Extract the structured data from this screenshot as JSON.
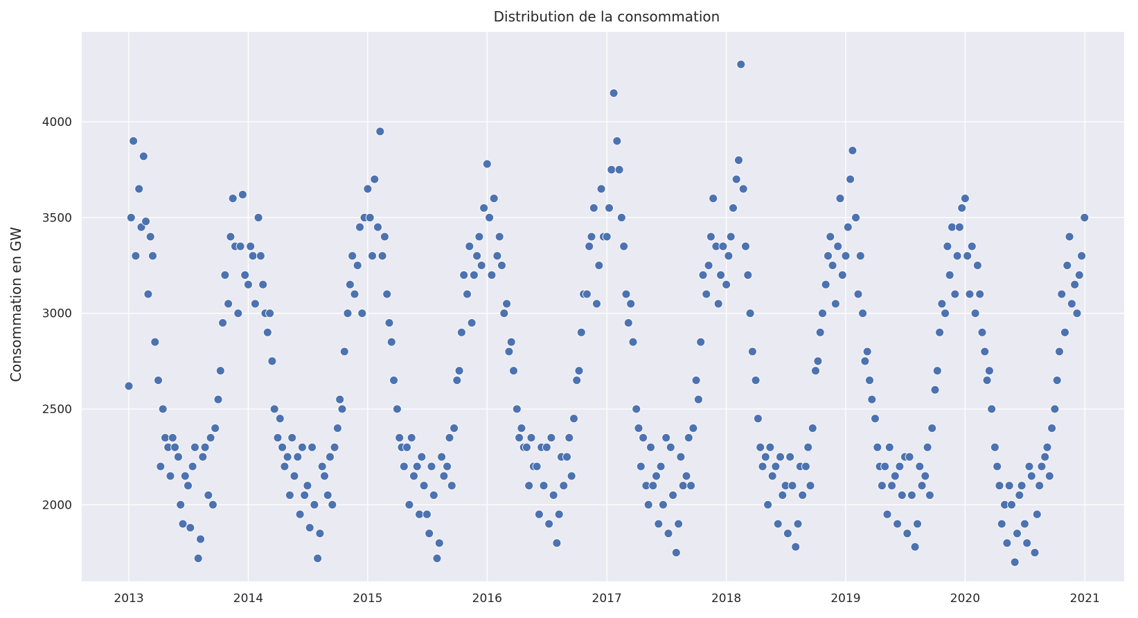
{
  "chart_data": {
    "type": "scatter",
    "title": "Distribution de la consommation",
    "xlabel": "",
    "ylabel": "Consommation en GW",
    "xlim": [
      "2012-08-10",
      "2021-05-01"
    ],
    "ylim": [
      1600,
      4470
    ],
    "x_ticks": [
      "2013",
      "2014",
      "2015",
      "2016",
      "2017",
      "2018",
      "2019",
      "2020",
      "2021"
    ],
    "y_ticks": [
      "2000",
      "2500",
      "3000",
      "3500",
      "4000"
    ],
    "grid": true,
    "legend": "none",
    "colors": {
      "background": "#eaeaf2",
      "grid": "#ffffff",
      "marker": "#4c72b0",
      "marker_edge": "#ffffff"
    },
    "series": [
      {
        "x": [
          "2013-01-01",
          "2013-01-08",
          "2013-01-15",
          "2013-01-22",
          "2013-02-01",
          "2013-02-08",
          "2013-02-15",
          "2013-02-22",
          "2013-03-01",
          "2013-03-08",
          "2013-03-15",
          "2013-03-22",
          "2013-04-01",
          "2013-04-08",
          "2013-04-15",
          "2013-04-22",
          "2013-05-01",
          "2013-05-08",
          "2013-05-15",
          "2013-05-22",
          "2013-06-01",
          "2013-06-08",
          "2013-06-15",
          "2013-06-22",
          "2013-07-01",
          "2013-07-08",
          "2013-07-15",
          "2013-07-22",
          "2013-08-01",
          "2013-08-08",
          "2013-08-15",
          "2013-08-22",
          "2013-09-01",
          "2013-09-08",
          "2013-09-15",
          "2013-09-22",
          "2013-10-01",
          "2013-10-08",
          "2013-10-15",
          "2013-10-22",
          "2013-11-01",
          "2013-11-08",
          "2013-11-15",
          "2013-11-22",
          "2013-12-01",
          "2013-12-08",
          "2013-12-15",
          "2013-12-22",
          "2014-01-01",
          "2014-01-08",
          "2014-01-15",
          "2014-01-22",
          "2014-02-01",
          "2014-02-08",
          "2014-02-15",
          "2014-02-22",
          "2014-03-01",
          "2014-03-08",
          "2014-03-15",
          "2014-03-22",
          "2014-04-01",
          "2014-04-08",
          "2014-04-15",
          "2014-04-22",
          "2014-05-01",
          "2014-05-08",
          "2014-05-15",
          "2014-05-22",
          "2014-06-01",
          "2014-06-08",
          "2014-06-15",
          "2014-06-22",
          "2014-07-01",
          "2014-07-08",
          "2014-07-15",
          "2014-07-22",
          "2014-08-01",
          "2014-08-08",
          "2014-08-15",
          "2014-08-22",
          "2014-09-01",
          "2014-09-08",
          "2014-09-15",
          "2014-09-22",
          "2014-10-01",
          "2014-10-08",
          "2014-10-15",
          "2014-10-22",
          "2014-11-01",
          "2014-11-08",
          "2014-11-15",
          "2014-11-22",
          "2014-12-01",
          "2014-12-08",
          "2014-12-15",
          "2014-12-22",
          "2015-01-01",
          "2015-01-08",
          "2015-01-15",
          "2015-01-22",
          "2015-02-01",
          "2015-02-08",
          "2015-02-15",
          "2015-02-22",
          "2015-03-01",
          "2015-03-08",
          "2015-03-15",
          "2015-03-22",
          "2015-04-01",
          "2015-04-08",
          "2015-04-15",
          "2015-04-22",
          "2015-05-01",
          "2015-05-08",
          "2015-05-15",
          "2015-05-22",
          "2015-06-01",
          "2015-06-08",
          "2015-06-15",
          "2015-06-22",
          "2015-07-01",
          "2015-07-08",
          "2015-07-15",
          "2015-07-22",
          "2015-08-01",
          "2015-08-08",
          "2015-08-15",
          "2015-08-22",
          "2015-09-01",
          "2015-09-08",
          "2015-09-15",
          "2015-09-22",
          "2015-10-01",
          "2015-10-08",
          "2015-10-15",
          "2015-10-22",
          "2015-11-01",
          "2015-11-08",
          "2015-11-15",
          "2015-11-22",
          "2015-12-01",
          "2015-12-08",
          "2015-12-15",
          "2015-12-22",
          "2016-01-01",
          "2016-01-08",
          "2016-01-15",
          "2016-01-22",
          "2016-02-01",
          "2016-02-08",
          "2016-02-15",
          "2016-02-22",
          "2016-03-01",
          "2016-03-08",
          "2016-03-15",
          "2016-03-22",
          "2016-04-01",
          "2016-04-08",
          "2016-04-15",
          "2016-04-22",
          "2016-05-01",
          "2016-05-08",
          "2016-05-15",
          "2016-05-22",
          "2016-06-01",
          "2016-06-08",
          "2016-06-15",
          "2016-06-22",
          "2016-07-01",
          "2016-07-08",
          "2016-07-15",
          "2016-07-22",
          "2016-08-01",
          "2016-08-08",
          "2016-08-15",
          "2016-08-22",
          "2016-09-01",
          "2016-09-08",
          "2016-09-15",
          "2016-09-22",
          "2016-10-01",
          "2016-10-08",
          "2016-10-15",
          "2016-10-22",
          "2016-11-01",
          "2016-11-08",
          "2016-11-15",
          "2016-11-22",
          "2016-12-01",
          "2016-12-08",
          "2016-12-15",
          "2016-12-22",
          "2017-01-01",
          "2017-01-08",
          "2017-01-15",
          "2017-01-22",
          "2017-02-01",
          "2017-02-08",
          "2017-02-15",
          "2017-02-22",
          "2017-03-01",
          "2017-03-08",
          "2017-03-15",
          "2017-03-22",
          "2017-04-01",
          "2017-04-08",
          "2017-04-15",
          "2017-04-22",
          "2017-05-01",
          "2017-05-08",
          "2017-05-15",
          "2017-05-22",
          "2017-06-01",
          "2017-06-08",
          "2017-06-15",
          "2017-06-22",
          "2017-07-01",
          "2017-07-08",
          "2017-07-15",
          "2017-07-22",
          "2017-08-01",
          "2017-08-08",
          "2017-08-15",
          "2017-08-22",
          "2017-09-01",
          "2017-09-08",
          "2017-09-15",
          "2017-09-22",
          "2017-10-01",
          "2017-10-08",
          "2017-10-15",
          "2017-10-22",
          "2017-11-01",
          "2017-11-08",
          "2017-11-15",
          "2017-11-22",
          "2017-12-01",
          "2017-12-08",
          "2017-12-15",
          "2017-12-22",
          "2018-01-01",
          "2018-01-08",
          "2018-01-15",
          "2018-01-22",
          "2018-02-01",
          "2018-02-08",
          "2018-02-15",
          "2018-02-22",
          "2018-03-01",
          "2018-03-08",
          "2018-03-15",
          "2018-03-22",
          "2018-04-01",
          "2018-04-08",
          "2018-04-15",
          "2018-04-22",
          "2018-05-01",
          "2018-05-08",
          "2018-05-15",
          "2018-05-22",
          "2018-06-01",
          "2018-06-08",
          "2018-06-15",
          "2018-06-22",
          "2018-07-01",
          "2018-07-08",
          "2018-07-15",
          "2018-07-22",
          "2018-08-01",
          "2018-08-08",
          "2018-08-15",
          "2018-08-22",
          "2018-09-01",
          "2018-09-08",
          "2018-09-15",
          "2018-09-22",
          "2018-10-01",
          "2018-10-08",
          "2018-10-15",
          "2018-10-22",
          "2018-11-01",
          "2018-11-08",
          "2018-11-15",
          "2018-11-22",
          "2018-12-01",
          "2018-12-08",
          "2018-12-15",
          "2018-12-22",
          "2019-01-01",
          "2019-01-08",
          "2019-01-15",
          "2019-01-22",
          "2019-02-01",
          "2019-02-08",
          "2019-02-15",
          "2019-02-22",
          "2019-03-01",
          "2019-03-08",
          "2019-03-15",
          "2019-03-22",
          "2019-04-01",
          "2019-04-08",
          "2019-04-15",
          "2019-04-22",
          "2019-05-01",
          "2019-05-08",
          "2019-05-15",
          "2019-05-22",
          "2019-06-01",
          "2019-06-08",
          "2019-06-15",
          "2019-06-22",
          "2019-07-01",
          "2019-07-08",
          "2019-07-15",
          "2019-07-22",
          "2019-08-01",
          "2019-08-08",
          "2019-08-15",
          "2019-08-22",
          "2019-09-01",
          "2019-09-08",
          "2019-09-15",
          "2019-09-22",
          "2019-10-01",
          "2019-10-08",
          "2019-10-15",
          "2019-10-22",
          "2019-11-01",
          "2019-11-08",
          "2019-11-15",
          "2019-11-22",
          "2019-12-01",
          "2019-12-08",
          "2019-12-15",
          "2019-12-22",
          "2020-01-01",
          "2020-01-08",
          "2020-01-15",
          "2020-01-22",
          "2020-02-01",
          "2020-02-08",
          "2020-02-15",
          "2020-02-22",
          "2020-03-01",
          "2020-03-08",
          "2020-03-15",
          "2020-03-22",
          "2020-04-01",
          "2020-04-08",
          "2020-04-15",
          "2020-04-22",
          "2020-05-01",
          "2020-05-08",
          "2020-05-15",
          "2020-05-22",
          "2020-06-01",
          "2020-06-08",
          "2020-06-15",
          "2020-06-22",
          "2020-07-01",
          "2020-07-08",
          "2020-07-15",
          "2020-07-22",
          "2020-08-01",
          "2020-08-08",
          "2020-08-15",
          "2020-08-22",
          "2020-09-01",
          "2020-09-08",
          "2020-09-15",
          "2020-09-22",
          "2020-10-01",
          "2020-10-08",
          "2020-10-15",
          "2020-10-22",
          "2020-11-01",
          "2020-11-08",
          "2020-11-15",
          "2020-11-22",
          "2020-12-01",
          "2020-12-08",
          "2020-12-15",
          "2020-12-22",
          "2020-12-31"
        ],
        "y": [
          2620,
          3500,
          3900,
          3300,
          3650,
          3450,
          3820,
          3480,
          3100,
          3400,
          3300,
          2850,
          2650,
          2200,
          2500,
          2350,
          2300,
          2150,
          2350,
          2300,
          2250,
          2000,
          1900,
          2150,
          2100,
          1880,
          2200,
          2300,
          1720,
          1820,
          2250,
          2300,
          2050,
          2350,
          2000,
          2400,
          2550,
          2700,
          2950,
          3200,
          3050,
          3400,
          3600,
          3350,
          3000,
          3350,
          3620,
          3200,
          3150,
          3350,
          3300,
          3050,
          3500,
          3300,
          3150,
          3000,
          2900,
          3000,
          2750,
          2500,
          2350,
          2450,
          2300,
          2200,
          2250,
          2050,
          2350,
          2150,
          2250,
          1950,
          2300,
          2050,
          2100,
          1880,
          2300,
          2000,
          1720,
          1850,
          2200,
          2150,
          2050,
          2250,
          2000,
          2300,
          2400,
          2550,
          2500,
          2800,
          3000,
          3150,
          3300,
          3100,
          3250,
          3450,
          3000,
          3500,
          3650,
          3500,
          3300,
          3700,
          3450,
          3950,
          3300,
          3400,
          3100,
          2950,
          2850,
          2650,
          2500,
          2350,
          2300,
          2200,
          2300,
          2000,
          2350,
          2150,
          2200,
          1950,
          2250,
          2100,
          1950,
          1850,
          2200,
          2050,
          1720,
          1800,
          2250,
          2150,
          2200,
          2350,
          2100,
          2400,
          2650,
          2700,
          2900,
          3200,
          3100,
          3350,
          2950,
          3200,
          3300,
          3400,
          3250,
          3550,
          3780,
          3500,
          3200,
          3600,
          3300,
          3400,
          3250,
          3000,
          3050,
          2800,
          2850,
          2700,
          2500,
          2350,
          2400,
          2300,
          2300,
          2100,
          2350,
          2200,
          2200,
          1950,
          2300,
          2100,
          2300,
          1900,
          2350,
          2050,
          1800,
          1950,
          2250,
          2100,
          2250,
          2350,
          2150,
          2450,
          2650,
          2700,
          2900,
          3100,
          3100,
          3350,
          3400,
          3550,
          3050,
          3250,
          3650,
          3400,
          3400,
          3550,
          3750,
          4150,
          3900,
          3750,
          3500,
          3350,
          3100,
          2950,
          3050,
          2850,
          2500,
          2400,
          2200,
          2350,
          2100,
          2000,
          2300,
          2100,
          2150,
          1900,
          2200,
          2000,
          2350,
          1850,
          2300,
          2050,
          1750,
          1900,
          2250,
          2100,
          2150,
          2350,
          2100,
          2400,
          2650,
          2550,
          2850,
          3200,
          3100,
          3250,
          3400,
          3600,
          3350,
          3050,
          3200,
          3350,
          3150,
          3300,
          3400,
          3550,
          3700,
          3800,
          4300,
          3650,
          3350,
          3200,
          3000,
          2800,
          2650,
          2450,
          2300,
          2200,
          2250,
          2000,
          2300,
          2150,
          2200,
          1900,
          2250,
          2050,
          2100,
          1850,
          2250,
          2100,
          1780,
          1900,
          2200,
          2050,
          2200,
          2300,
          2100,
          2400,
          2700,
          2750,
          2900,
          3000,
          3150,
          3300,
          3400,
          3250,
          3050,
          3350,
          3600,
          3200,
          3300,
          3450,
          3700,
          3850,
          3500,
          3100,
          3300,
          3000,
          2750,
          2800,
          2650,
          2550,
          2450,
          2300,
          2200,
          2100,
          2200,
          1950,
          2300,
          2100,
          2150,
          1900,
          2200,
          2050,
          2250,
          1850,
          2250,
          2050,
          1780,
          1900,
          2200,
          2100,
          2150,
          2300,
          2050,
          2400,
          2600,
          2700,
          2900,
          3050,
          3000,
          3350,
          3200,
          3450,
          3100,
          3300,
          3450,
          3550,
          3600,
          3300,
          3100,
          3350,
          3000,
          3250,
          3100,
          2900,
          2800,
          2650,
          2700,
          2500,
          2300,
          2200,
          2100,
          1900,
          2000,
          1800,
          2100,
          2000,
          1700,
          1850,
          2050,
          2100,
          1900,
          1800,
          2200,
          2150,
          1750,
          1950,
          2100,
          2200,
          2250,
          2300,
          2150,
          2400,
          2500,
          2650,
          2800,
          3100,
          2900,
          3250,
          3400,
          3050,
          3150,
          3000,
          3200,
          3300,
          3500
        ]
      }
    ]
  }
}
